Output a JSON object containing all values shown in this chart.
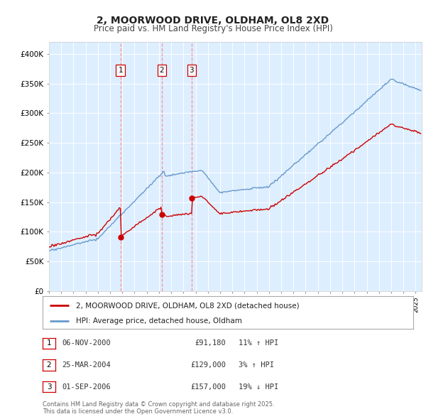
{
  "title": "2, MOORWOOD DRIVE, OLDHAM, OL8 2XD",
  "subtitle": "Price paid vs. HM Land Registry's House Price Index (HPI)",
  "plot_bg_color": "#ddeeff",
  "ylim": [
    0,
    420000
  ],
  "yticks": [
    0,
    50000,
    100000,
    150000,
    200000,
    250000,
    300000,
    350000,
    400000
  ],
  "ytick_labels": [
    "£0",
    "£50K",
    "£100K",
    "£150K",
    "£200K",
    "£250K",
    "£300K",
    "£350K",
    "£400K"
  ],
  "xlim_start": 1995.0,
  "xlim_end": 2025.5,
  "transactions": [
    {
      "num": 1,
      "date": 2000.85,
      "price": 91180,
      "label": "1"
    },
    {
      "num": 2,
      "date": 2004.23,
      "price": 129000,
      "label": "2"
    },
    {
      "num": 3,
      "date": 2006.67,
      "price": 157000,
      "label": "3"
    }
  ],
  "transaction_details": [
    {
      "num": "1",
      "date": "06-NOV-2000",
      "price": "£91,180",
      "hpi": "11% ↑ HPI"
    },
    {
      "num": "2",
      "date": "25-MAR-2004",
      "price": "£129,000",
      "hpi": "3% ↑ HPI"
    },
    {
      "num": "3",
      "date": "01-SEP-2006",
      "price": "£157,000",
      "hpi": "19% ↓ HPI"
    }
  ],
  "legend_entries": [
    "2, MOORWOOD DRIVE, OLDHAM, OL8 2XD (detached house)",
    "HPI: Average price, detached house, Oldham"
  ],
  "footer": "Contains HM Land Registry data © Crown copyright and database right 2025.\nThis data is licensed under the Open Government Licence v3.0.",
  "red_color": "#cc0000",
  "blue_color": "#6699cc",
  "vline_color": "#ff8888"
}
